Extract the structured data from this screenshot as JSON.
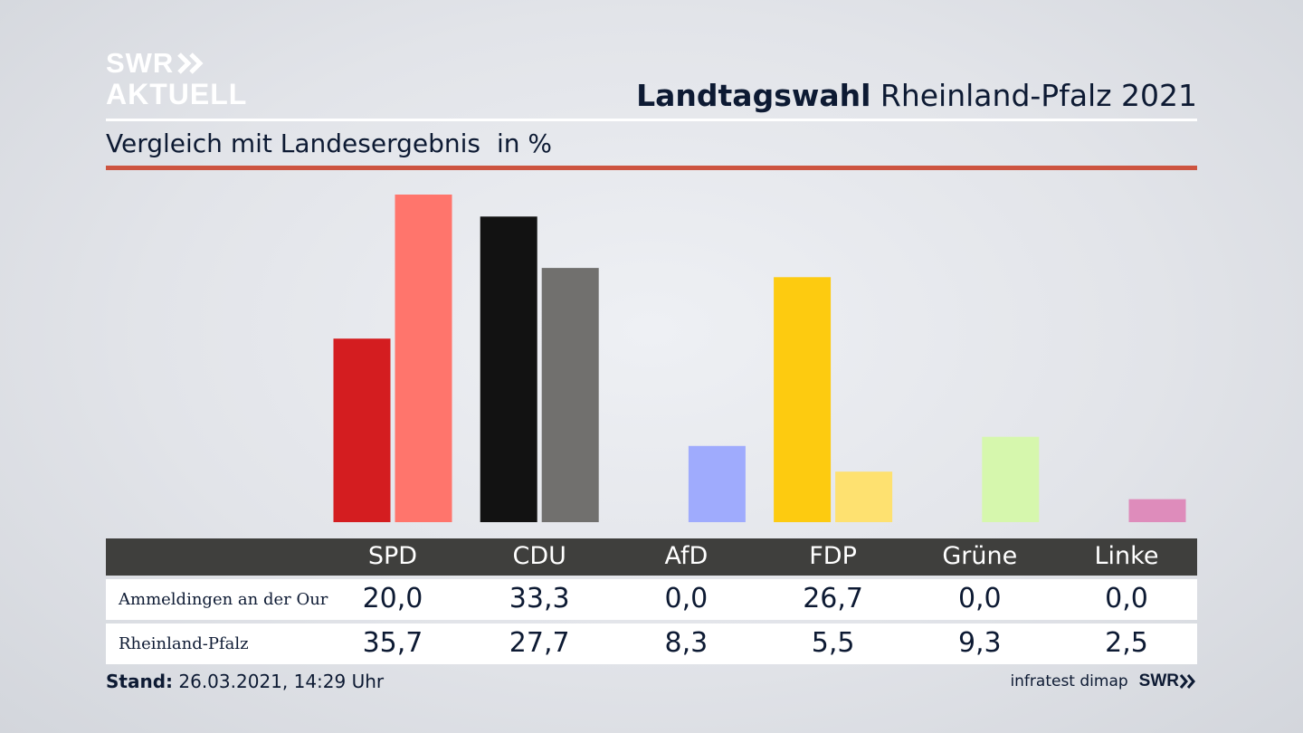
{
  "brand": {
    "line1": "SWR",
    "line2": "AKTUELL"
  },
  "header": {
    "title_bold": "Landtagswahl",
    "title_rest": "Rheinland-Pfalz 2021",
    "subtitle": "Vergleich mit Landesergebnis",
    "unit": "in %"
  },
  "colors": {
    "accent_rule": "#cd5440",
    "table_header": "#3f3f3d"
  },
  "chart_data": {
    "type": "bar",
    "categories": [
      "SPD",
      "CDU",
      "AfD",
      "FDP",
      "Grüne",
      "Linke"
    ],
    "series": [
      {
        "name": "Ammeldingen an der Our",
        "values": [
          20.0,
          33.3,
          0.0,
          26.7,
          0.0,
          0.0
        ],
        "colors": [
          "#d41d20",
          "#121212",
          "#7b8ef5",
          "#fdcb10",
          "#8fc53a",
          "#b03a79"
        ]
      },
      {
        "name": "Rheinland-Pfalz",
        "values": [
          35.7,
          27.7,
          8.3,
          5.5,
          9.3,
          2.5
        ],
        "colors": [
          "#ff756c",
          "#71706e",
          "#9fabfd",
          "#fee170",
          "#d6f7ad",
          "#de8cbb"
        ]
      }
    ],
    "value_labels": [
      [
        "20,0",
        "33,3",
        "0,0",
        "26,7",
        "0,0",
        "0,0"
      ],
      [
        "35,7",
        "27,7",
        "8,3",
        "5,5",
        "9,3",
        "2,5"
      ]
    ],
    "ylim": [
      0,
      36
    ],
    "grid": false
  },
  "footer": {
    "stand_label": "Stand:",
    "stand_value": "26.03.2021, 14:29 Uhr",
    "source": "infratest dimap",
    "brand": "SWR"
  }
}
